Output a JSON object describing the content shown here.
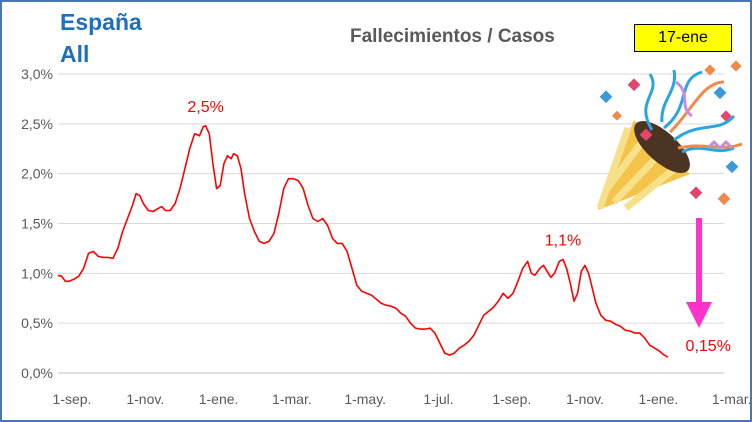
{
  "header": {
    "region_line1": "España",
    "region_line2": "All",
    "title": "Fallecimientos / Casos",
    "date_badge": "17-ene"
  },
  "decoration": {
    "party_popper_icon": "party-popper-icon",
    "arrow_color": "#ff33cc"
  },
  "chart_data": {
    "type": "line",
    "title": "Fallecimientos / Casos",
    "xlabel": "",
    "ylabel": "",
    "x_range": [
      "2020-09-01",
      "2022-03-01"
    ],
    "ylim": [
      0,
      3.0
    ],
    "x_ticks": [
      "1-sep.",
      "1-nov.",
      "1-ene.",
      "1-mar.",
      "1-may.",
      "1-jul.",
      "1-sep.",
      "1-nov.",
      "1-ene.",
      "1-mar."
    ],
    "y_ticks": [
      "0,0%",
      "0,5%",
      "1,0%",
      "1,5%",
      "2,0%",
      "2,5%",
      "3,0%"
    ],
    "grid": "horizontal",
    "legend": "none",
    "series": [
      {
        "color": "#ff0000",
        "points": [
          [
            "2020-09-01",
            0.98
          ],
          [
            "2020-09-04",
            0.97
          ],
          [
            "2020-09-07",
            0.92
          ],
          [
            "2020-09-10",
            0.92
          ],
          [
            "2020-09-14",
            0.94
          ],
          [
            "2020-09-18",
            0.97
          ],
          [
            "2020-09-22",
            1.05
          ],
          [
            "2020-09-26",
            1.2
          ],
          [
            "2020-09-30",
            1.22
          ],
          [
            "2020-10-04",
            1.17
          ],
          [
            "2020-10-08",
            1.16
          ],
          [
            "2020-10-12",
            1.16
          ],
          [
            "2020-10-16",
            1.15
          ],
          [
            "2020-10-20",
            1.25
          ],
          [
            "2020-10-24",
            1.42
          ],
          [
            "2020-10-28",
            1.55
          ],
          [
            "2020-11-01",
            1.68
          ],
          [
            "2020-11-04",
            1.8
          ],
          [
            "2020-11-07",
            1.78
          ],
          [
            "2020-11-10",
            1.7
          ],
          [
            "2020-11-14",
            1.63
          ],
          [
            "2020-11-18",
            1.62
          ],
          [
            "2020-11-22",
            1.65
          ],
          [
            "2020-11-25",
            1.67
          ],
          [
            "2020-11-28",
            1.63
          ],
          [
            "2020-12-02",
            1.63
          ],
          [
            "2020-12-06",
            1.7
          ],
          [
            "2020-12-10",
            1.85
          ],
          [
            "2020-12-14",
            2.05
          ],
          [
            "2020-12-18",
            2.25
          ],
          [
            "2020-12-22",
            2.4
          ],
          [
            "2020-12-26",
            2.38
          ],
          [
            "2020-12-29",
            2.47
          ],
          [
            "2020-12-31",
            2.48
          ],
          [
            "2021-01-03",
            2.4
          ],
          [
            "2021-01-06",
            2.1
          ],
          [
            "2021-01-09",
            1.85
          ],
          [
            "2021-01-12",
            1.88
          ],
          [
            "2021-01-15",
            2.1
          ],
          [
            "2021-01-18",
            2.18
          ],
          [
            "2021-01-21",
            2.15
          ],
          [
            "2021-01-23",
            2.2
          ],
          [
            "2021-01-26",
            2.18
          ],
          [
            "2021-01-29",
            2.05
          ],
          [
            "2021-02-01",
            1.8
          ],
          [
            "2021-02-05",
            1.55
          ],
          [
            "2021-02-09",
            1.42
          ],
          [
            "2021-02-13",
            1.32
          ],
          [
            "2021-02-17",
            1.3
          ],
          [
            "2021-02-21",
            1.32
          ],
          [
            "2021-02-25",
            1.4
          ],
          [
            "2021-03-01",
            1.6
          ],
          [
            "2021-03-05",
            1.85
          ],
          [
            "2021-03-09",
            1.95
          ],
          [
            "2021-03-13",
            1.95
          ],
          [
            "2021-03-17",
            1.93
          ],
          [
            "2021-03-21",
            1.85
          ],
          [
            "2021-03-25",
            1.68
          ],
          [
            "2021-03-29",
            1.55
          ],
          [
            "2021-04-02",
            1.52
          ],
          [
            "2021-04-06",
            1.55
          ],
          [
            "2021-04-10",
            1.48
          ],
          [
            "2021-04-14",
            1.35
          ],
          [
            "2021-04-18",
            1.3
          ],
          [
            "2021-04-22",
            1.3
          ],
          [
            "2021-04-26",
            1.22
          ],
          [
            "2021-04-30",
            1.05
          ],
          [
            "2021-05-04",
            0.88
          ],
          [
            "2021-05-08",
            0.82
          ],
          [
            "2021-05-12",
            0.8
          ],
          [
            "2021-05-16",
            0.78
          ],
          [
            "2021-05-20",
            0.74
          ],
          [
            "2021-05-24",
            0.7
          ],
          [
            "2021-05-28",
            0.68
          ],
          [
            "2021-06-01",
            0.67
          ],
          [
            "2021-06-05",
            0.65
          ],
          [
            "2021-06-09",
            0.6
          ],
          [
            "2021-06-13",
            0.57
          ],
          [
            "2021-06-17",
            0.5
          ],
          [
            "2021-06-21",
            0.45
          ],
          [
            "2021-06-25",
            0.44
          ],
          [
            "2021-06-29",
            0.44
          ],
          [
            "2021-07-03",
            0.45
          ],
          [
            "2021-07-07",
            0.4
          ],
          [
            "2021-07-11",
            0.3
          ],
          [
            "2021-07-15",
            0.2
          ],
          [
            "2021-07-19",
            0.18
          ],
          [
            "2021-07-23",
            0.2
          ],
          [
            "2021-07-27",
            0.25
          ],
          [
            "2021-07-31",
            0.28
          ],
          [
            "2021-08-04",
            0.32
          ],
          [
            "2021-08-08",
            0.38
          ],
          [
            "2021-08-12",
            0.48
          ],
          [
            "2021-08-16",
            0.58
          ],
          [
            "2021-08-20",
            0.62
          ],
          [
            "2021-08-24",
            0.66
          ],
          [
            "2021-08-28",
            0.72
          ],
          [
            "2021-09-01",
            0.8
          ],
          [
            "2021-09-05",
            0.75
          ],
          [
            "2021-09-09",
            0.8
          ],
          [
            "2021-09-13",
            0.92
          ],
          [
            "2021-09-17",
            1.05
          ],
          [
            "2021-09-21",
            1.12
          ],
          [
            "2021-09-24",
            1.0
          ],
          [
            "2021-09-27",
            0.98
          ],
          [
            "2021-10-01",
            1.05
          ],
          [
            "2021-10-04",
            1.08
          ],
          [
            "2021-10-07",
            1.02
          ],
          [
            "2021-10-10",
            0.96
          ],
          [
            "2021-10-13",
            1.0
          ],
          [
            "2021-10-17",
            1.12
          ],
          [
            "2021-10-20",
            1.14
          ],
          [
            "2021-10-23",
            1.05
          ],
          [
            "2021-10-26",
            0.9
          ],
          [
            "2021-10-29",
            0.72
          ],
          [
            "2021-11-01",
            0.8
          ],
          [
            "2021-11-04",
            1.02
          ],
          [
            "2021-11-07",
            1.08
          ],
          [
            "2021-11-10",
            1.0
          ],
          [
            "2021-11-13",
            0.85
          ],
          [
            "2021-11-16",
            0.7
          ],
          [
            "2021-11-20",
            0.58
          ],
          [
            "2021-11-24",
            0.53
          ],
          [
            "2021-11-28",
            0.52
          ],
          [
            "2021-12-02",
            0.49
          ],
          [
            "2021-12-06",
            0.47
          ],
          [
            "2021-12-10",
            0.43
          ],
          [
            "2021-12-14",
            0.42
          ],
          [
            "2021-12-18",
            0.4
          ],
          [
            "2021-12-22",
            0.4
          ],
          [
            "2021-12-26",
            0.35
          ],
          [
            "2021-12-30",
            0.28
          ],
          [
            "2022-01-03",
            0.25
          ],
          [
            "2022-01-07",
            0.22
          ],
          [
            "2022-01-11",
            0.18
          ],
          [
            "2022-01-14",
            0.16
          ]
        ]
      }
    ],
    "annotations": [
      {
        "text": "2,5%",
        "x": "2020-12-31",
        "y": 2.48
      },
      {
        "text": "1,1%",
        "x": "2021-10-20",
        "y": 1.14
      },
      {
        "text": "0,15%",
        "x": "2022-01-17",
        "y": 0.15
      }
    ]
  }
}
